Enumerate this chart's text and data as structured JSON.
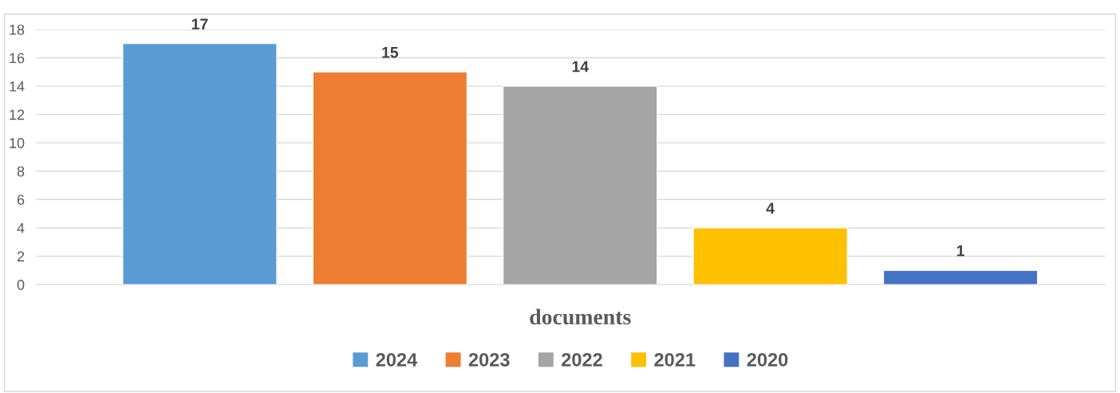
{
  "chart_data": {
    "type": "bar",
    "xlabel": null,
    "categories": [
      "documents"
    ],
    "series": [
      {
        "name": "2024",
        "color": "#5b9bd5",
        "values": [
          17
        ]
      },
      {
        "name": "2023",
        "color": "#ed7d31",
        "values": [
          15
        ]
      },
      {
        "name": "2022",
        "color": "#a5a5a5",
        "values": [
          14
        ]
      },
      {
        "name": "2021",
        "color": "#ffc000",
        "values": [
          4
        ]
      },
      {
        "name": "2020",
        "color": "#4472c4",
        "values": [
          1
        ]
      }
    ],
    "ylim": [
      0,
      18
    ],
    "yticks": [
      0,
      2,
      4,
      6,
      8,
      10,
      12,
      14,
      16,
      18
    ],
    "grid": "y",
    "legend": "bottom",
    "data_labels": true
  }
}
